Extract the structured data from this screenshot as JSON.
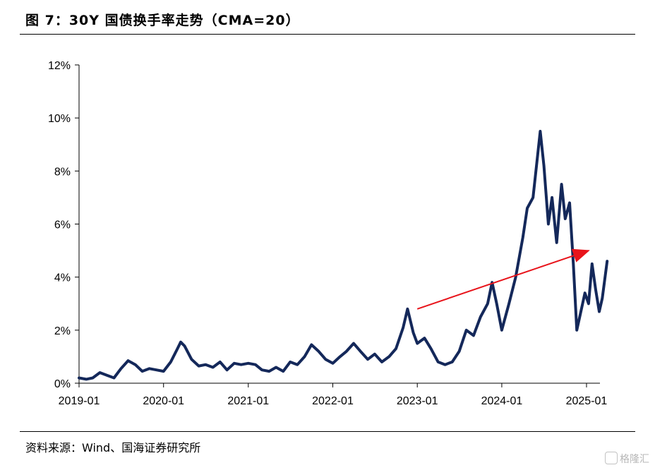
{
  "figure": {
    "title": "图 7：30Y 国债换手率走势（CMA=20）",
    "source": "资料来源：Wind、国海证券研究所",
    "watermark": "格隆汇"
  },
  "colors": {
    "series": "#14285a",
    "trend_arrow": "#e8141b",
    "axis": "#000000"
  },
  "chart_data": {
    "type": "line",
    "title": "30Y 国债换手率走势（CMA=20）",
    "xlabel": "",
    "ylabel": "",
    "x_ticks": [
      "2019-01",
      "2020-01",
      "2021-01",
      "2022-01",
      "2023-01",
      "2024-01",
      "2025-01"
    ],
    "y_ticks": [
      "0%",
      "2%",
      "4%",
      "6%",
      "8%",
      "10%",
      "12%"
    ],
    "ylim": [
      0,
      12
    ],
    "xlim": [
      "2019-01-01",
      "2025-02-28"
    ],
    "grid": false,
    "legend": "none",
    "series": [
      {
        "values": [
          [
            "2019-01-01",
            0.2
          ],
          [
            "2019-02-01",
            0.15
          ],
          [
            "2019-03-01",
            0.2
          ],
          [
            "2019-04-01",
            0.4
          ],
          [
            "2019-05-01",
            0.3
          ],
          [
            "2019-06-01",
            0.2
          ],
          [
            "2019-07-01",
            0.55
          ],
          [
            "2019-08-01",
            0.85
          ],
          [
            "2019-09-01",
            0.7
          ],
          [
            "2019-10-01",
            0.45
          ],
          [
            "2019-11-01",
            0.55
          ],
          [
            "2019-12-01",
            0.5
          ],
          [
            "2020-01-01",
            0.45
          ],
          [
            "2020-02-01",
            0.8
          ],
          [
            "2020-03-01",
            1.3
          ],
          [
            "2020-03-15",
            1.55
          ],
          [
            "2020-04-01",
            1.4
          ],
          [
            "2020-05-01",
            0.9
          ],
          [
            "2020-06-01",
            0.65
          ],
          [
            "2020-07-01",
            0.7
          ],
          [
            "2020-08-01",
            0.6
          ],
          [
            "2020-09-01",
            0.8
          ],
          [
            "2020-10-01",
            0.5
          ],
          [
            "2020-11-01",
            0.75
          ],
          [
            "2020-12-01",
            0.7
          ],
          [
            "2021-01-01",
            0.75
          ],
          [
            "2021-02-01",
            0.7
          ],
          [
            "2021-03-01",
            0.5
          ],
          [
            "2021-04-01",
            0.45
          ],
          [
            "2021-05-01",
            0.6
          ],
          [
            "2021-06-01",
            0.45
          ],
          [
            "2021-07-01",
            0.8
          ],
          [
            "2021-08-01",
            0.7
          ],
          [
            "2021-09-01",
            1.0
          ],
          [
            "2021-10-01",
            1.45
          ],
          [
            "2021-11-01",
            1.2
          ],
          [
            "2021-12-01",
            0.9
          ],
          [
            "2022-01-01",
            0.75
          ],
          [
            "2022-02-01",
            1.0
          ],
          [
            "2022-03-01",
            1.2
          ],
          [
            "2022-04-01",
            1.5
          ],
          [
            "2022-05-01",
            1.2
          ],
          [
            "2022-06-01",
            0.9
          ],
          [
            "2022-07-01",
            1.1
          ],
          [
            "2022-08-01",
            0.8
          ],
          [
            "2022-09-01",
            1.0
          ],
          [
            "2022-10-01",
            1.3
          ],
          [
            "2022-11-01",
            2.1
          ],
          [
            "2022-11-20",
            2.8
          ],
          [
            "2022-12-15",
            1.9
          ],
          [
            "2023-01-01",
            1.5
          ],
          [
            "2023-02-01",
            1.7
          ],
          [
            "2023-03-01",
            1.3
          ],
          [
            "2023-04-01",
            0.8
          ],
          [
            "2023-05-01",
            0.7
          ],
          [
            "2023-06-01",
            0.8
          ],
          [
            "2023-07-01",
            1.2
          ],
          [
            "2023-08-01",
            2.0
          ],
          [
            "2023-09-01",
            1.8
          ],
          [
            "2023-10-01",
            2.5
          ],
          [
            "2023-11-01",
            3.0
          ],
          [
            "2023-11-20",
            3.8
          ],
          [
            "2023-12-10",
            3.0
          ],
          [
            "2024-01-01",
            2.0
          ],
          [
            "2024-02-01",
            3.0
          ],
          [
            "2024-03-01",
            4.0
          ],
          [
            "2024-04-01",
            5.5
          ],
          [
            "2024-04-20",
            6.6
          ],
          [
            "2024-05-15",
            7.0
          ],
          [
            "2024-06-15",
            9.5
          ],
          [
            "2024-07-01",
            8.2
          ],
          [
            "2024-07-20",
            6.0
          ],
          [
            "2024-08-05",
            7.0
          ],
          [
            "2024-08-25",
            5.3
          ],
          [
            "2024-09-15",
            7.5
          ],
          [
            "2024-10-01",
            6.2
          ],
          [
            "2024-10-20",
            6.8
          ],
          [
            "2024-11-05",
            4.5
          ],
          [
            "2024-11-20",
            2.0
          ],
          [
            "2024-12-10",
            2.8
          ],
          [
            "2024-12-25",
            3.4
          ],
          [
            "2025-01-10",
            3.0
          ],
          [
            "2025-01-25",
            4.5
          ],
          [
            "2025-02-10",
            3.5
          ],
          [
            "2025-02-25",
            2.7
          ],
          [
            "2025-03-10",
            3.2
          ],
          [
            "2025-03-31",
            4.6
          ]
        ]
      }
    ],
    "annotations": [
      {
        "type": "arrow",
        "from": [
          "2023-01-01",
          2.8
        ],
        "to": [
          "2025-01-10",
          5.0
        ]
      }
    ]
  }
}
